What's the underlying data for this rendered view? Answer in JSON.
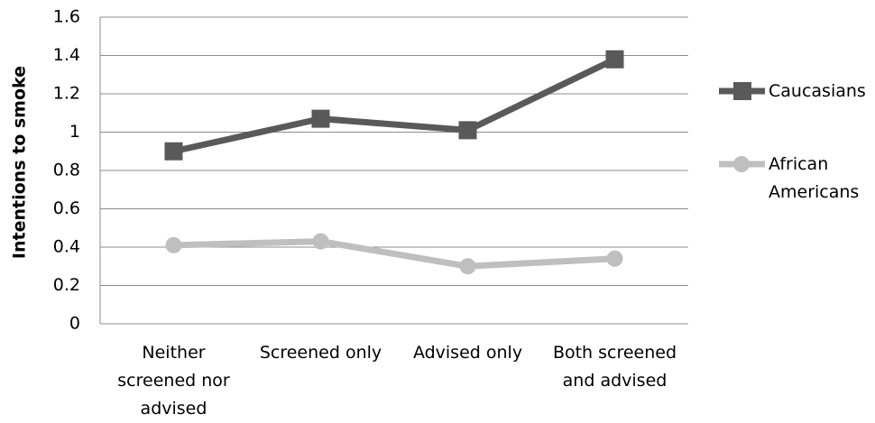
{
  "chart_data": {
    "type": "line",
    "y_label": "Intentions to smoke",
    "categories": [
      "Neither screened nor advised",
      "Screened only",
      "Advised only",
      "Both screened and advised"
    ],
    "series": [
      {
        "name": "Caucasians",
        "color": "#595959",
        "marker": "square",
        "values": [
          0.9,
          1.07,
          1.01,
          1.38
        ]
      },
      {
        "name": "African Americans",
        "color": "#bfbfbf",
        "marker": "circle",
        "values": [
          0.41,
          0.43,
          0.3,
          0.34
        ]
      }
    ],
    "ylim": [
      0,
      1.6
    ],
    "yticks": [
      0,
      0.2,
      0.4,
      0.6,
      0.8,
      1,
      1.2,
      1.4,
      1.6
    ],
    "grid": true,
    "legend": "right"
  }
}
